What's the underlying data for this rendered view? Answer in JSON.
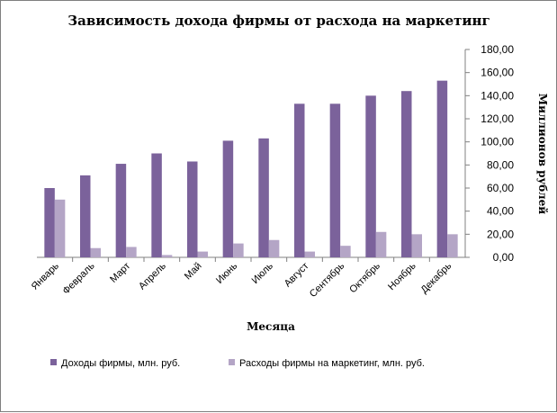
{
  "chart_data": {
    "type": "bar",
    "title": "Зависимость дохода фирмы от расхода на маркетинг",
    "xlabel": "Месяца",
    "ylabel": "Миллионов рублей",
    "categories": [
      "Январь",
      "Февраль",
      "Март",
      "Апрель",
      "Май",
      "Июнь",
      "Июль",
      "Август",
      "Сентябрь",
      "Октябрь",
      "Ноябрь",
      "Декабрь"
    ],
    "series": [
      {
        "name": "Доходы фирмы, млн. руб.",
        "color": "#7b629b",
        "values": [
          60,
          71,
          81,
          90,
          83,
          101,
          103,
          133,
          133,
          140,
          144,
          153
        ]
      },
      {
        "name": "Расходы фирмы на маркетинг, млн. руб.",
        "color": "#b4a5c6",
        "values": [
          50,
          8,
          9,
          2,
          5,
          12,
          15,
          5,
          10,
          22,
          20,
          20
        ]
      }
    ],
    "ylim": [
      0,
      180
    ],
    "yticks": [
      "0,00",
      "20,00",
      "40,00",
      "60,00",
      "80,00",
      "100,00",
      "120,00",
      "140,00",
      "160,00",
      "180,00"
    ],
    "y_axis_side": "right",
    "grid": false,
    "legend_position": "bottom"
  }
}
